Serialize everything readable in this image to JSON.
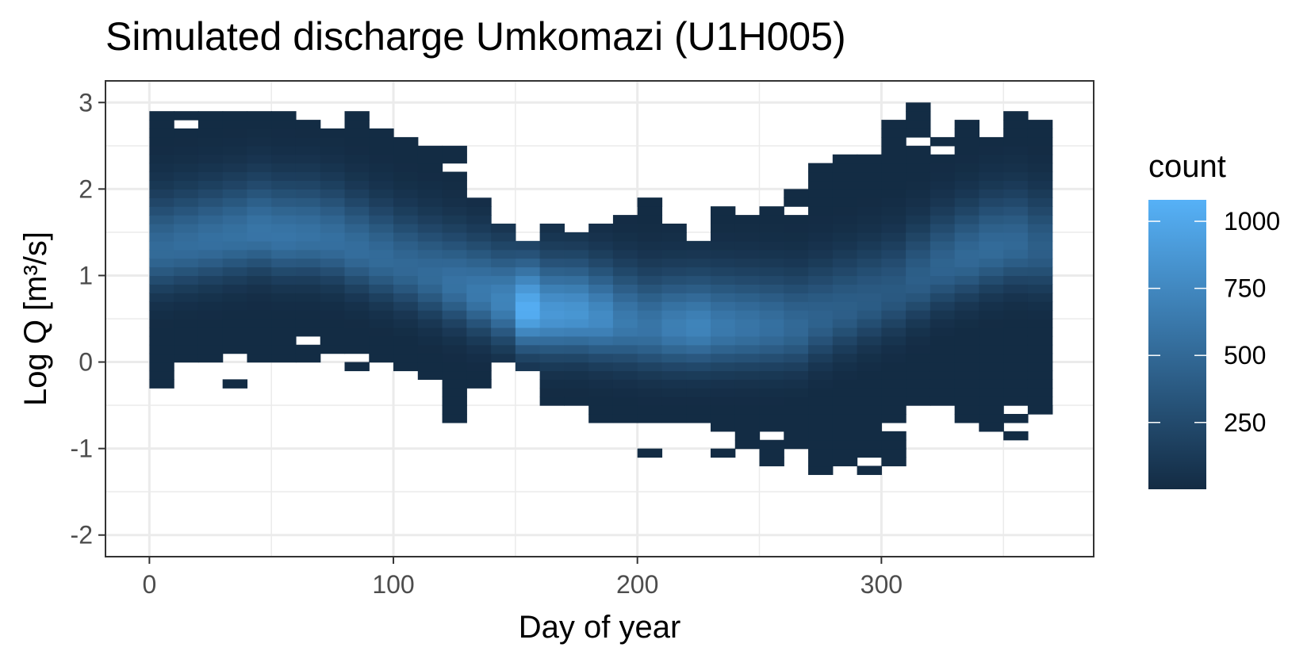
{
  "chart_data": {
    "type": "heatmap",
    "title": "Simulated discharge Umkomazi (U1H005)",
    "xlabel": "Day of year",
    "ylabel": "Log Q [m³/s]",
    "xlim": [
      -18,
      387
    ],
    "ylim": [
      -2.25,
      3.25
    ],
    "x_ticks": [
      0,
      100,
      200,
      300
    ],
    "y_ticks": [
      -2,
      -1,
      0,
      1,
      2,
      3
    ],
    "bin_width_x": 10,
    "bin_width_y": 0.1,
    "x_bin_starts": [
      0,
      10,
      20,
      30,
      40,
      50,
      60,
      70,
      80,
      90,
      100,
      110,
      120,
      130,
      140,
      150,
      160,
      170,
      180,
      190,
      200,
      210,
      220,
      230,
      240,
      250,
      260,
      270,
      280,
      290,
      300,
      310,
      320,
      330,
      340,
      350,
      360
    ],
    "column_ranges": [
      [
        -0.3,
        2.9
      ],
      [
        0.0,
        2.9
      ],
      [
        0.0,
        2.9
      ],
      [
        0.1,
        2.9
      ],
      [
        0.0,
        2.9
      ],
      [
        0.0,
        2.9
      ],
      [
        0.0,
        2.8
      ],
      [
        0.1,
        2.7
      ],
      [
        -0.1,
        2.9
      ],
      [
        0.0,
        2.7
      ],
      [
        -0.1,
        2.6
      ],
      [
        -0.2,
        2.5
      ],
      [
        -0.7,
        2.5
      ],
      [
        -0.2,
        1.9
      ],
      [
        0.0,
        1.6
      ],
      [
        -0.1,
        1.4
      ],
      [
        -0.5,
        1.6
      ],
      [
        -0.5,
        1.5
      ],
      [
        -0.7,
        1.6
      ],
      [
        -0.7,
        1.7
      ],
      [
        -0.7,
        1.9
      ],
      [
        -0.7,
        1.7
      ],
      [
        -0.7,
        1.4
      ],
      [
        -0.8,
        1.8
      ],
      [
        -1.0,
        1.7
      ],
      [
        -1.2,
        1.8
      ],
      [
        -1.0,
        1.9
      ],
      [
        -1.3,
        2.3
      ],
      [
        -1.2,
        2.4
      ],
      [
        -1.1,
        2.4
      ],
      [
        -1.2,
        2.8
      ],
      [
        -0.5,
        2.9
      ],
      [
        -0.5,
        2.6
      ],
      [
        -0.7,
        2.8
      ],
      [
        -0.8,
        2.7
      ],
      [
        -0.5,
        2.9
      ],
      [
        -0.6,
        2.8
      ]
    ],
    "ridge_center_logq": [
      1.3,
      1.35,
      1.4,
      1.45,
      1.5,
      1.45,
      1.45,
      1.4,
      1.3,
      1.2,
      1.1,
      1.0,
      0.9,
      0.8,
      0.7,
      0.6,
      0.55,
      0.55,
      0.5,
      0.45,
      0.4,
      0.4,
      0.4,
      0.4,
      0.4,
      0.4,
      0.4,
      0.5,
      0.6,
      0.7,
      0.8,
      0.95,
      1.1,
      1.2,
      1.3,
      1.35,
      1.3
    ],
    "ridge_peak_count": [
      520,
      540,
      560,
      570,
      600,
      600,
      580,
      560,
      540,
      520,
      500,
      520,
      580,
      640,
      720,
      1050,
      880,
      860,
      780,
      650,
      600,
      680,
      720,
      640,
      600,
      560,
      500,
      450,
      420,
      400,
      380,
      420,
      460,
      500,
      520,
      500,
      420
    ],
    "gaps": [
      [
        10,
        2.7
      ],
      [
        120,
        2.2
      ],
      [
        210,
        1.6
      ],
      [
        260,
        1.7
      ],
      [
        310,
        2.5
      ],
      [
        320,
        2.4
      ],
      [
        340,
        2.6
      ],
      [
        60,
        0.2
      ],
      [
        80,
        0.0
      ],
      [
        110,
        -0.3
      ],
      [
        220,
        -0.8
      ],
      [
        250,
        -0.9
      ],
      [
        300,
        -0.8
      ]
    ],
    "outliers": [
      [
        30,
        -0.3
      ],
      [
        130,
        -0.3
      ],
      [
        200,
        -1.1
      ],
      [
        230,
        -1.1
      ],
      [
        290,
        -1.3
      ],
      [
        340,
        -0.8
      ],
      [
        350,
        -0.7
      ],
      [
        350,
        -0.9
      ],
      [
        260,
        1.9
      ],
      [
        200,
        1.8
      ],
      [
        310,
        2.9
      ],
      [
        360,
        -0.6
      ]
    ],
    "legend": {
      "title": "count",
      "ticks": [
        250,
        500,
        750,
        1000
      ],
      "min": 1,
      "max": 1080,
      "placement": "right"
    },
    "color_low": "#132B43",
    "color_high": "#56B1F7",
    "grid": true,
    "panel_border_color": "#333333",
    "grid_color": "#ebebeb"
  }
}
